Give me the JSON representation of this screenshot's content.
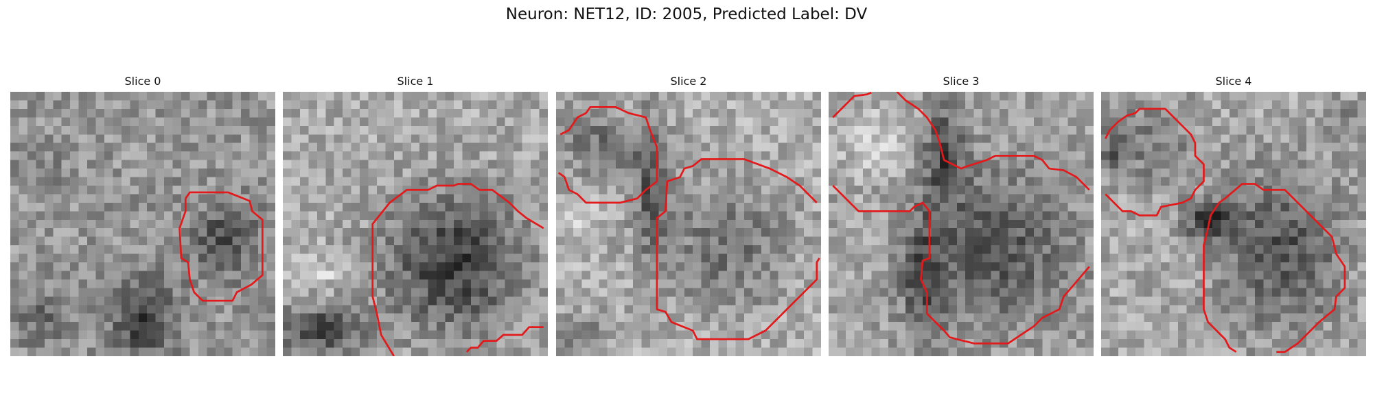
{
  "figure": {
    "title": "Neuron: NET12, ID: 2005, Predicted Label: DV",
    "panels": [
      {
        "label": "Slice 0"
      },
      {
        "label": "Slice 1"
      },
      {
        "label": "Slice 2"
      },
      {
        "label": "Slice 3"
      },
      {
        "label": "Slice 4"
      }
    ]
  },
  "colors": {
    "contour": "#e31a1c",
    "background": "#ffffff",
    "text": "#111111"
  }
}
